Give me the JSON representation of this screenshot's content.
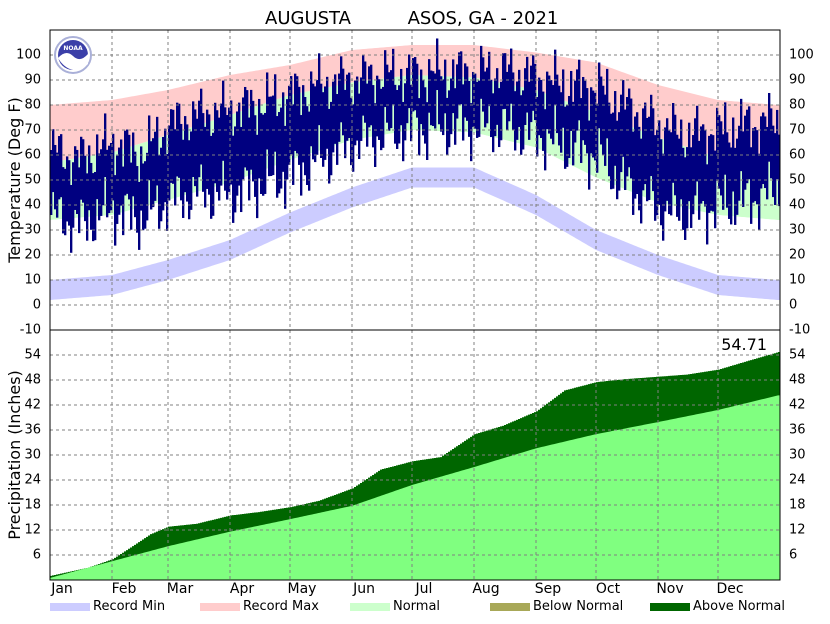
{
  "chart_data": [
    {
      "type": "area",
      "panel": "temperature",
      "title": "AUGUSTA        ASOS, GA - 2021",
      "title_station": "AUGUSTA",
      "title_network": "ASOS, GA - 2021",
      "ylabel": "Temperature (Deg F)",
      "ylim": [
        -10,
        110
      ],
      "yticks": [
        -10,
        0,
        10,
        20,
        30,
        40,
        50,
        60,
        70,
        80,
        90,
        100
      ],
      "grid": true,
      "x_months": [
        "Jan",
        "Feb",
        "Mar",
        "Apr",
        "May",
        "Jun",
        "Jul",
        "Aug",
        "Sep",
        "Oct",
        "Nov",
        "Dec"
      ],
      "series": [
        {
          "name": "Record Max",
          "color": "#ffcccc",
          "x": [
            "2021-01-01",
            "2021-02-01",
            "2021-03-01",
            "2021-04-01",
            "2021-05-01",
            "2021-06-01",
            "2021-07-01",
            "2021-08-01",
            "2021-09-01",
            "2021-10-01",
            "2021-11-01",
            "2021-12-01",
            "2021-12-31"
          ],
          "values": [
            80,
            82,
            86,
            92,
            96,
            102,
            104,
            104,
            101,
            97,
            88,
            82,
            80
          ]
        },
        {
          "name": "Normal",
          "color": "#ccffcc",
          "x": [
            "2021-01-01",
            "2021-02-01",
            "2021-03-01",
            "2021-04-01",
            "2021-05-01",
            "2021-06-01",
            "2021-07-01",
            "2021-08-01",
            "2021-09-01",
            "2021-10-01",
            "2021-11-01",
            "2021-12-01",
            "2021-12-31"
          ],
          "normal_high": [
            57,
            61,
            68,
            76,
            84,
            89,
            92,
            91,
            86,
            77,
            67,
            59,
            57
          ],
          "normal_low": [
            34,
            36,
            42,
            49,
            58,
            66,
            70,
            69,
            63,
            51,
            41,
            36,
            34
          ]
        },
        {
          "name": "Record Min",
          "color": "#ccccff",
          "x": [
            "2021-01-01",
            "2021-02-01",
            "2021-03-01",
            "2021-04-01",
            "2021-05-01",
            "2021-06-01",
            "2021-07-01",
            "2021-08-01",
            "2021-09-01",
            "2021-10-01",
            "2021-11-01",
            "2021-12-01",
            "2021-12-31"
          ],
          "values": [
            10,
            12,
            18,
            26,
            37,
            47,
            55,
            55,
            44,
            30,
            20,
            12,
            10
          ]
        },
        {
          "name": "Observed High",
          "color": "#000080",
          "x": [
            "2021-01-01",
            "2021-01-15",
            "2021-02-01",
            "2021-02-15",
            "2021-03-01",
            "2021-03-15",
            "2021-04-01",
            "2021-04-15",
            "2021-05-01",
            "2021-05-15",
            "2021-06-01",
            "2021-06-15",
            "2021-07-01",
            "2021-07-15",
            "2021-08-01",
            "2021-08-15",
            "2021-09-01",
            "2021-09-15",
            "2021-10-01",
            "2021-10-15",
            "2021-11-01",
            "2021-11-15",
            "2021-12-01",
            "2021-12-15",
            "2021-12-31"
          ],
          "values": [
            62,
            58,
            65,
            60,
            72,
            76,
            78,
            80,
            84,
            88,
            90,
            92,
            92,
            93,
            93,
            94,
            91,
            88,
            87,
            80,
            72,
            68,
            70,
            72,
            74
          ]
        },
        {
          "name": "Observed Low",
          "color": "#000080",
          "x": [
            "2021-01-01",
            "2021-01-15",
            "2021-02-01",
            "2021-02-15",
            "2021-03-01",
            "2021-03-15",
            "2021-04-01",
            "2021-04-15",
            "2021-05-01",
            "2021-05-15",
            "2021-06-01",
            "2021-06-15",
            "2021-07-01",
            "2021-07-15",
            "2021-08-01",
            "2021-08-15",
            "2021-09-01",
            "2021-09-15",
            "2021-10-01",
            "2021-10-15",
            "2021-11-01",
            "2021-11-15",
            "2021-12-01",
            "2021-12-15",
            "2021-12-31"
          ],
          "values": [
            36,
            32,
            38,
            34,
            42,
            45,
            44,
            48,
            52,
            58,
            64,
            68,
            70,
            71,
            71,
            71,
            68,
            64,
            60,
            48,
            38,
            36,
            40,
            42,
            46
          ]
        }
      ]
    },
    {
      "type": "area",
      "panel": "precipitation",
      "ylabel": "Precipitation (Inches)",
      "ylim": [
        0,
        60
      ],
      "yticks": [
        6,
        12,
        18,
        24,
        30,
        36,
        42,
        48,
        54
      ],
      "grid": true,
      "annotation": "54.71",
      "x_months": [
        "Jan",
        "Feb",
        "Mar",
        "Apr",
        "May",
        "Jun",
        "Jul",
        "Aug",
        "Sep",
        "Oct",
        "Nov",
        "Dec"
      ],
      "series": [
        {
          "name": "Normal",
          "color": "#80ff80",
          "x": [
            "2021-01-01",
            "2021-02-01",
            "2021-03-01",
            "2021-04-01",
            "2021-05-01",
            "2021-06-01",
            "2021-07-01",
            "2021-08-01",
            "2021-09-01",
            "2021-10-01",
            "2021-11-01",
            "2021-12-01",
            "2021-12-31"
          ],
          "values": [
            0.5,
            4.5,
            8.1,
            11.6,
            14.6,
            17.8,
            22.8,
            27.1,
            31.6,
            35.0,
            37.9,
            40.8,
            44.3
          ]
        },
        {
          "name": "Observed",
          "color": "#006600",
          "x": [
            "2021-01-01",
            "2021-01-20",
            "2021-02-01",
            "2021-02-10",
            "2021-02-20",
            "2021-03-01",
            "2021-03-15",
            "2021-04-01",
            "2021-04-15",
            "2021-05-01",
            "2021-05-15",
            "2021-06-01",
            "2021-06-15",
            "2021-07-01",
            "2021-07-15",
            "2021-08-01",
            "2021-08-15",
            "2021-09-01",
            "2021-09-15",
            "2021-10-01",
            "2021-10-15",
            "2021-11-01",
            "2021-11-15",
            "2021-12-01",
            "2021-12-15",
            "2021-12-31"
          ],
          "values": [
            1.0,
            3.0,
            5.0,
            7.8,
            11.0,
            12.8,
            13.5,
            15.5,
            16.3,
            17.5,
            19.0,
            22.0,
            26.5,
            28.5,
            29.5,
            35.0,
            37.0,
            40.5,
            45.5,
            47.5,
            48.2,
            48.8,
            49.3,
            50.5,
            52.5,
            54.71
          ]
        }
      ]
    }
  ],
  "legend": [
    {
      "label": "Record Min",
      "color": "#ccccff"
    },
    {
      "label": "Record Max",
      "color": "#ffcccc"
    },
    {
      "label": "Normal",
      "color": "#ccffcc"
    },
    {
      "label": "Below Normal",
      "color": "#a8a858"
    },
    {
      "label": "Above Normal",
      "color": "#006600"
    }
  ],
  "logo": {
    "icon": "noaa-logo",
    "text": "NOAA"
  }
}
